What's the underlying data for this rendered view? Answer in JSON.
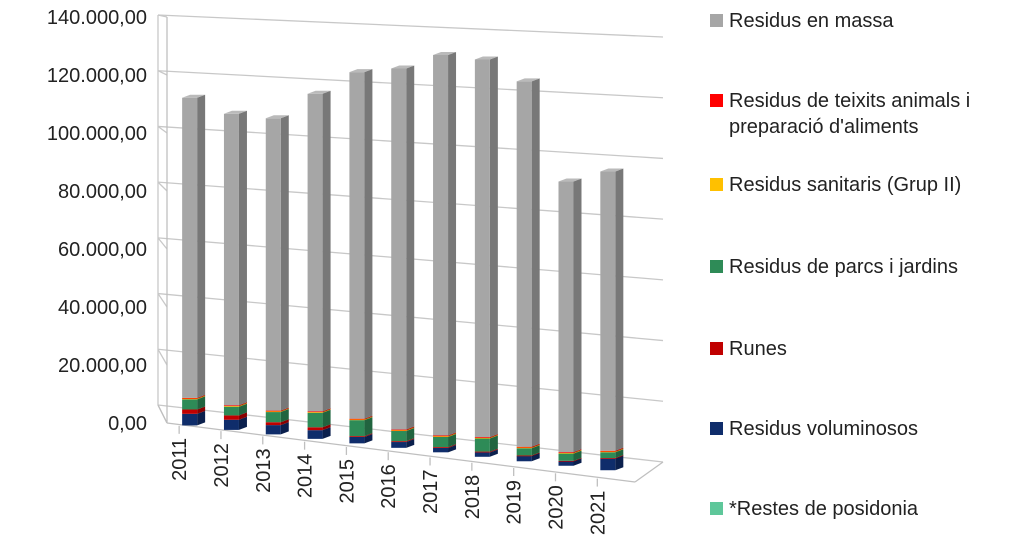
{
  "chart_data": {
    "type": "bar",
    "stacked": true,
    "three_d": true,
    "categories": [
      "2011",
      "2012",
      "2013",
      "2014",
      "2015",
      "2016",
      "2017",
      "2018",
      "2019",
      "2020",
      "2021"
    ],
    "y_ticks": [
      "0,00",
      "20.000,00",
      "40.000,00",
      "60.000,00",
      "80.000,00",
      "100.000,00",
      "120.000,00",
      "140.000,00"
    ],
    "ylim": [
      0,
      140000
    ],
    "grid": true,
    "legend_position": "right",
    "series": [
      {
        "name": "*Restes de posidonia",
        "color": "#5ec79a",
        "values": [
          0,
          0,
          0,
          0,
          0,
          0,
          0,
          0,
          0,
          0,
          0
        ]
      },
      {
        "name": "Residus voluminosos",
        "color": "#0f2d6b",
        "values": [
          4000,
          3500,
          3200,
          3000,
          2200,
          2000,
          1500,
          1500,
          1800,
          1500,
          4000
        ]
      },
      {
        "name": "Runes",
        "color": "#c00000",
        "values": [
          1500,
          1500,
          1000,
          1000,
          300,
          300,
          300,
          300,
          200,
          200,
          200
        ]
      },
      {
        "name": "Residus de parcs i jardins",
        "color": "#2e8b57",
        "values": [
          3500,
          3000,
          3500,
          5000,
          5500,
          3500,
          3500,
          4500,
          2500,
          2500,
          2000
        ]
      },
      {
        "name": "Residus sanitaris (Grup II)",
        "color": "#ffc000",
        "values": [
          300,
          300,
          300,
          300,
          300,
          300,
          300,
          300,
          300,
          300,
          300
        ]
      },
      {
        "name": "Residus de teixits animals i preparació d'aliments",
        "color": "#ff0000",
        "values": [
          200,
          200,
          200,
          200,
          200,
          200,
          200,
          200,
          200,
          200,
          200
        ]
      },
      {
        "name": "Residus en massa",
        "color": "#a6a6a6",
        "values": [
          103500,
          100500,
          100800,
          109500,
          119500,
          124500,
          131200,
          130200,
          126000,
          93300,
          96300
        ]
      }
    ],
    "legend_order": [
      6,
      5,
      4,
      3,
      2,
      1,
      0
    ]
  }
}
